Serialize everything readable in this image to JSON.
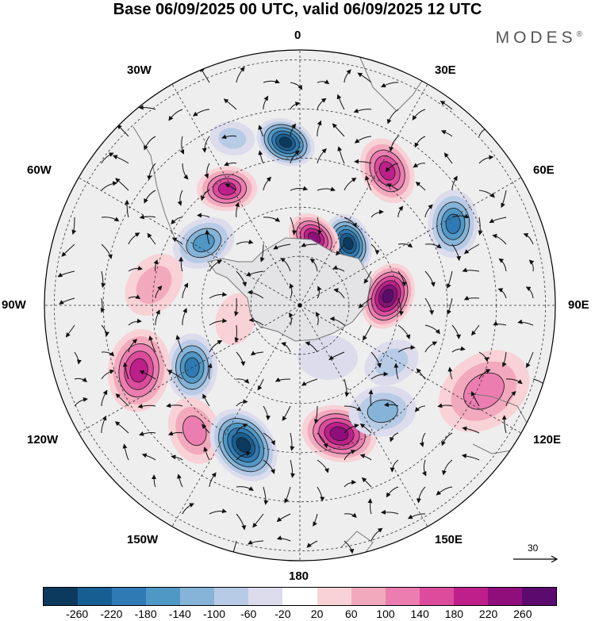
{
  "header": {
    "title": "Base 06/09/2025 00 UTC, valid 06/09/2025 12 UTC",
    "brand": "MODES",
    "brand_mark": "®"
  },
  "longitude_labels": [
    "0",
    "30E",
    "60E",
    "90E",
    "120E",
    "150E",
    "180",
    "150W",
    "120W",
    "90W",
    "60W",
    "30W"
  ],
  "reference_vector": {
    "value": "30"
  },
  "colorbar": {
    "colors": [
      "#0b3a5e",
      "#175f93",
      "#2f7ab4",
      "#4f98c6",
      "#86b3d8",
      "#b7cbe6",
      "#dcdcec",
      "#ffffff",
      "#f8d2d6",
      "#f3a9bd",
      "#ec7db0",
      "#dd4c9c",
      "#bf1f8b",
      "#8f0e7c",
      "#5b0a6e"
    ],
    "labels": [
      "-260",
      "-220",
      "-180",
      "-140",
      "-100",
      "-60",
      "-20",
      "20",
      "60",
      "100",
      "140",
      "180",
      "220",
      "260"
    ]
  },
  "anomaly_centers": [
    {
      "lon": -60,
      "colat": 38,
      "value": -200,
      "size": 18
    },
    {
      "lon": -40,
      "colat": 50,
      "value": 120,
      "size": 18
    },
    {
      "lon": -68,
      "colat": 53,
      "value": 180,
      "size": 22
    },
    {
      "lon": -22,
      "colat": 46,
      "value": -260,
      "size": 21
    },
    {
      "lon": 17,
      "colat": 41,
      "value": 220,
      "size": 20
    },
    {
      "lon": 38,
      "colat": 41,
      "value": -100,
      "size": 18
    },
    {
      "lon": 58,
      "colat": 33,
      "value": -60,
      "size": 15
    },
    {
      "lon": 65,
      "colat": 62,
      "value": 100,
      "size": 26
    },
    {
      "lon": 96,
      "colat": 27,
      "value": 260,
      "size": 18
    },
    {
      "lon": 142,
      "colat": 24,
      "value": -260,
      "size": 16
    },
    {
      "lon": 168,
      "colat": 21,
      "value": 220,
      "size": 15
    },
    {
      "lon": 118,
      "colat": 53,
      "value": -180,
      "size": 18
    },
    {
      "lon": 147,
      "colat": 49,
      "value": 180,
      "size": 18
    },
    {
      "lon": -175,
      "colat": 50,
      "value": -260,
      "size": 16
    },
    {
      "lon": -148,
      "colat": 42,
      "value": 180,
      "size": 16
    },
    {
      "lon": -123,
      "colat": 35,
      "value": -160,
      "size": 17
    },
    {
      "lon": -98,
      "colat": 45,
      "value": 60,
      "size": 18
    },
    {
      "lon": -78,
      "colat": 20,
      "value": 40,
      "size": 14
    },
    {
      "lon": -158,
      "colat": 55,
      "value": -60,
      "size": 12
    },
    {
      "lon": 28,
      "colat": 18,
      "value": -20,
      "size": 16
    }
  ]
}
